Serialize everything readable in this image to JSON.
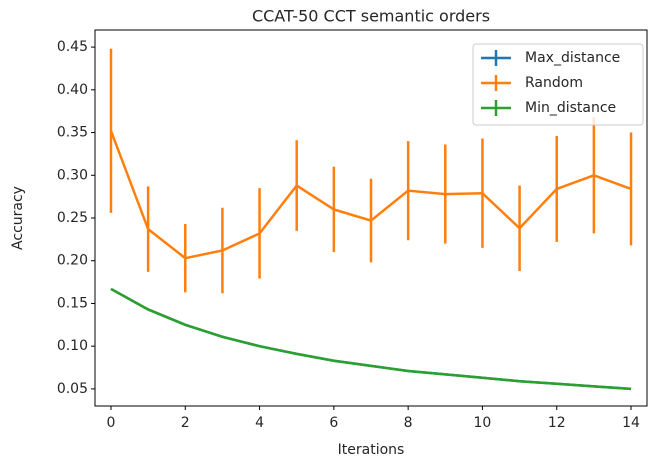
{
  "chart_data": {
    "type": "errorbar_line",
    "title": "CCAT-50 CCT semantic orders",
    "xlabel": "Iterations",
    "ylabel": "Accuracy",
    "x": [
      0,
      1,
      2,
      3,
      4,
      5,
      6,
      7,
      8,
      9,
      10,
      11,
      12,
      13,
      14
    ],
    "series": [
      {
        "name": "Max_distance",
        "color": "#1f77b4",
        "values": [
          0.167,
          0.143,
          0.125,
          0.111,
          0.1,
          0.091,
          0.083,
          0.077,
          0.071,
          0.067,
          0.063,
          0.059,
          0.056,
          0.053,
          0.05
        ],
        "errors": [
          0,
          0,
          0,
          0,
          0,
          0,
          0,
          0,
          0,
          0,
          0,
          0,
          0,
          0,
          0
        ]
      },
      {
        "name": "Random",
        "color": "#ff7f0e",
        "values": [
          0.352,
          0.237,
          0.203,
          0.212,
          0.232,
          0.288,
          0.26,
          0.247,
          0.282,
          0.278,
          0.279,
          0.238,
          0.284,
          0.3,
          0.284
        ],
        "errors": [
          0.096,
          0.05,
          0.04,
          0.05,
          0.053,
          0.053,
          0.05,
          0.049,
          0.058,
          0.058,
          0.064,
          0.05,
          0.062,
          0.068,
          0.066
        ]
      },
      {
        "name": "Min_distance",
        "color": "#2ca02c",
        "values": [
          0.167,
          0.143,
          0.125,
          0.111,
          0.1,
          0.091,
          0.083,
          0.077,
          0.071,
          0.067,
          0.063,
          0.059,
          0.056,
          0.053,
          0.05
        ],
        "errors": [
          0,
          0,
          0,
          0,
          0,
          0,
          0,
          0,
          0,
          0,
          0,
          0,
          0,
          0,
          0
        ]
      }
    ],
    "xlim": [
      -0.43,
      14.43
    ],
    "xticks": [
      0,
      2,
      4,
      6,
      8,
      10,
      12,
      14
    ],
    "ylim": [
      0.03,
      0.47
    ],
    "yticks": [
      0.05,
      {
        "value": 0.1,
        "label": "0.10"
      },
      0.15,
      {
        "value": 0.2,
        "label": "0.20"
      },
      0.25,
      {
        "value": 0.3,
        "label": "0.30"
      },
      0.35,
      {
        "value": 0.4,
        "label": "0.40"
      },
      0.45
    ],
    "legend": "upper right",
    "grid": false
  }
}
